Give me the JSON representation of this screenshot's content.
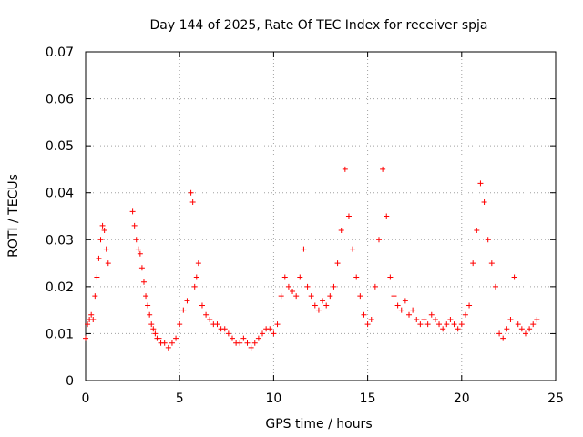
{
  "chart_data": {
    "type": "scatter",
    "title": "Day 144 of 2025, Rate Of TEC Index for receiver spja",
    "xlabel": "GPS time / hours",
    "ylabel": "ROTI / TECUs",
    "xlim": [
      0,
      25
    ],
    "ylim": [
      0,
      0.07
    ],
    "x_ticks": [
      0,
      5,
      10,
      15,
      20,
      25
    ],
    "x_tick_labels": [
      "0",
      "5",
      "10",
      "15",
      "20",
      "25"
    ],
    "y_ticks": [
      0,
      0.01,
      0.02,
      0.03,
      0.04,
      0.05,
      0.06,
      0.07
    ],
    "y_tick_labels": [
      "0",
      "0.01",
      "0.02",
      "0.03",
      "0.04",
      "0.05",
      "0.06",
      "0.07"
    ],
    "grid": true,
    "marker": "plus",
    "color": "#ff0000",
    "series": [
      {
        "name": "ROTI",
        "x": [
          0.0,
          0.1,
          0.2,
          0.3,
          0.4,
          0.5,
          0.6,
          0.7,
          0.8,
          0.9,
          1.0,
          1.1,
          1.2,
          2.5,
          2.6,
          2.7,
          2.8,
          2.9,
          3.0,
          3.1,
          3.2,
          3.3,
          3.4,
          3.5,
          3.6,
          3.7,
          3.8,
          3.9,
          4.0,
          4.2,
          4.4,
          4.6,
          4.8,
          5.0,
          5.2,
          5.4,
          5.6,
          5.7,
          5.8,
          5.9,
          6.0,
          6.2,
          6.4,
          6.6,
          6.8,
          7.0,
          7.2,
          7.4,
          7.6,
          7.8,
          8.0,
          8.2,
          8.4,
          8.6,
          8.8,
          9.0,
          9.2,
          9.4,
          9.6,
          9.8,
          10.0,
          10.2,
          10.4,
          10.6,
          10.8,
          11.0,
          11.2,
          11.4,
          11.6,
          11.8,
          12.0,
          12.2,
          12.4,
          12.6,
          12.8,
          13.0,
          13.2,
          13.4,
          13.6,
          13.8,
          14.0,
          14.2,
          14.4,
          14.6,
          14.8,
          15.0,
          15.2,
          15.4,
          15.6,
          15.8,
          16.0,
          16.2,
          16.4,
          16.6,
          16.8,
          17.0,
          17.2,
          17.4,
          17.6,
          17.8,
          18.0,
          18.2,
          18.4,
          18.6,
          18.8,
          19.0,
          19.2,
          19.4,
          19.6,
          19.8,
          20.0,
          20.2,
          20.4,
          20.6,
          20.8,
          21.0,
          21.2,
          21.4,
          21.6,
          21.8,
          22.0,
          22.2,
          22.4,
          22.6,
          22.8,
          23.0,
          23.2,
          23.4,
          23.6,
          23.8,
          24.0
        ],
        "y": [
          0.009,
          0.012,
          0.013,
          0.014,
          0.013,
          0.018,
          0.022,
          0.026,
          0.03,
          0.033,
          0.032,
          0.028,
          0.025,
          0.036,
          0.033,
          0.03,
          0.028,
          0.027,
          0.024,
          0.021,
          0.018,
          0.016,
          0.014,
          0.012,
          0.011,
          0.01,
          0.009,
          0.009,
          0.008,
          0.008,
          0.007,
          0.008,
          0.009,
          0.012,
          0.015,
          0.017,
          0.04,
          0.038,
          0.02,
          0.022,
          0.025,
          0.016,
          0.014,
          0.013,
          0.012,
          0.012,
          0.011,
          0.011,
          0.01,
          0.009,
          0.008,
          0.008,
          0.009,
          0.008,
          0.007,
          0.008,
          0.009,
          0.01,
          0.011,
          0.011,
          0.01,
          0.012,
          0.018,
          0.022,
          0.02,
          0.019,
          0.018,
          0.022,
          0.028,
          0.02,
          0.018,
          0.016,
          0.015,
          0.017,
          0.016,
          0.018,
          0.02,
          0.025,
          0.032,
          0.045,
          0.035,
          0.028,
          0.022,
          0.018,
          0.014,
          0.012,
          0.013,
          0.02,
          0.03,
          0.045,
          0.035,
          0.022,
          0.018,
          0.016,
          0.015,
          0.017,
          0.014,
          0.015,
          0.013,
          0.012,
          0.013,
          0.012,
          0.014,
          0.013,
          0.012,
          0.011,
          0.012,
          0.013,
          0.012,
          0.011,
          0.012,
          0.014,
          0.016,
          0.025,
          0.032,
          0.042,
          0.038,
          0.03,
          0.025,
          0.02,
          0.01,
          0.009,
          0.011,
          0.013,
          0.022,
          0.012,
          0.011,
          0.01,
          0.011,
          0.012,
          0.013
        ]
      }
    ]
  }
}
